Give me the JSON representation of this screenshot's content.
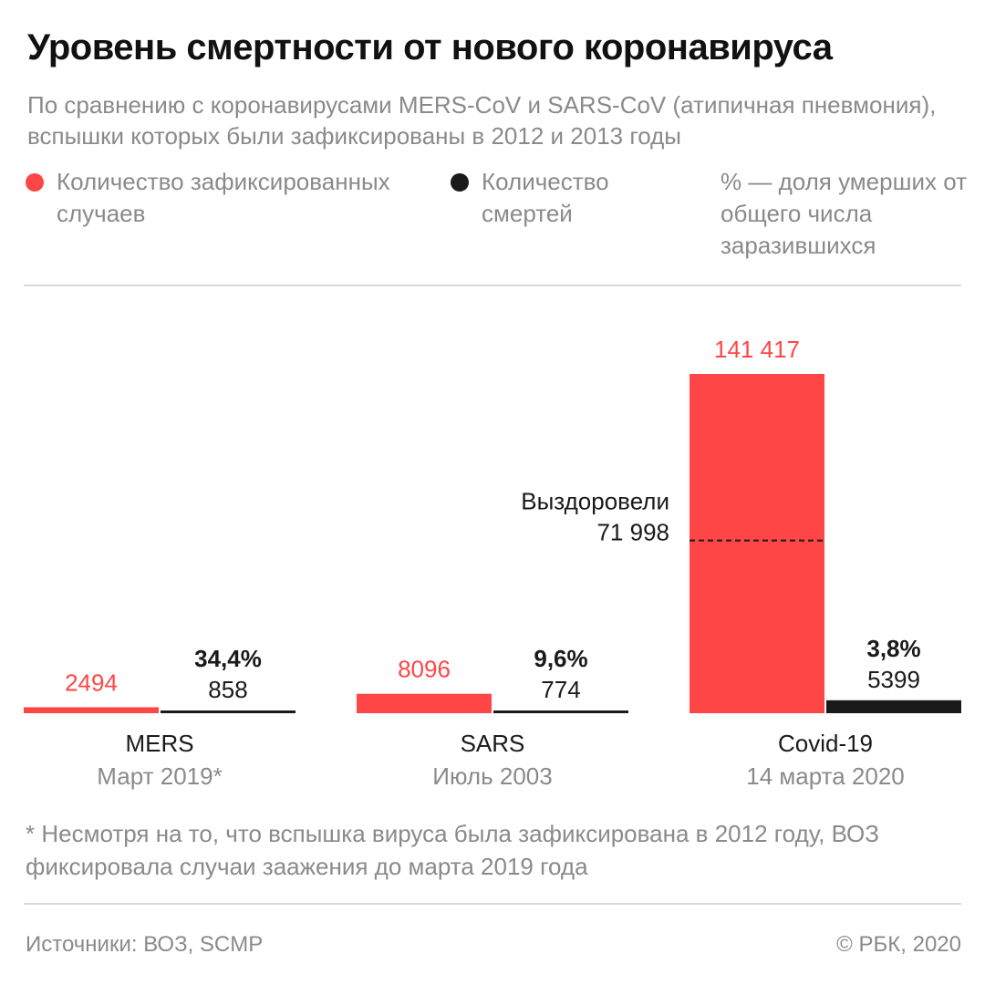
{
  "header": {
    "title": "Уровень смертности от нового коронавируса",
    "subtitle": "По сравнению с коронавирусами MERS-CoV и SARS-CoV (атипичная пневмония), вспышки которых были зафиксированы в 2012 и 2013 годы"
  },
  "legend": {
    "cases": "Количество зафиксированных случаев",
    "deaths": "Количество смертей",
    "note": "% — доля умерших от общего числа заразившихся"
  },
  "colors": {
    "cases": "#ff4646",
    "deaths": "#1a1a1a",
    "muted": "#8a8a8a"
  },
  "chart_data": {
    "type": "bar",
    "categories": [
      "MERS",
      "SARS",
      "Covid-19"
    ],
    "dates": [
      "Март 2019*",
      "Июль 2003",
      "14 марта 2020"
    ],
    "series": [
      {
        "name": "Количество зафиксированных случаев",
        "values": [
          2494,
          8096,
          141417
        ],
        "labels": [
          "2494",
          "8096",
          "141 417"
        ]
      },
      {
        "name": "Количество смертей",
        "values": [
          858,
          774,
          5399
        ],
        "labels": [
          "858",
          "774",
          "5399"
        ]
      }
    ],
    "death_rate": [
      "34,4%",
      "9,6%",
      "3,8%"
    ],
    "recovered": {
      "category": "Covid-19",
      "label": "Выздоровели",
      "value": 71998,
      "value_label": "71 998"
    },
    "ylim": [
      0,
      141417
    ]
  },
  "footnote": "* Несмотря на то, что вспышка вируса была зафиксирована в 2012 году, ВОЗ фиксировала случаи заажения до марта 2019 года",
  "footer": {
    "source": "Источники: ВОЗ, SCMP",
    "copyright": "© РБК, 2020"
  }
}
